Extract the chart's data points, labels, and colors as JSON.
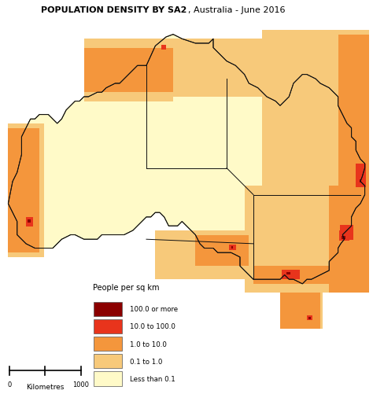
{
  "title_bold": "POPULATION DENSITY BY SA2",
  "title_regular": ", Australia - June 2016",
  "background_color": "#ffffff",
  "map_ocean_color": "#ffffff",
  "map_land_base": "#FFFAC8",
  "legend_title": "People per sq km",
  "legend_entries": [
    {
      "label": "100.0 or more",
      "color": "#8B0000"
    },
    {
      "label": "10.0 to 100.0",
      "color": "#E8341C"
    },
    {
      "label": "1.0 to 10.0",
      "color": "#F4963C"
    },
    {
      "label": "0.1 to 1.0",
      "color": "#F7C97A"
    },
    {
      "label": "Less than 0.1",
      "color": "#FFFAC8"
    }
  ],
  "figsize": [
    4.74,
    5.02
  ],
  "dpi": 100
}
